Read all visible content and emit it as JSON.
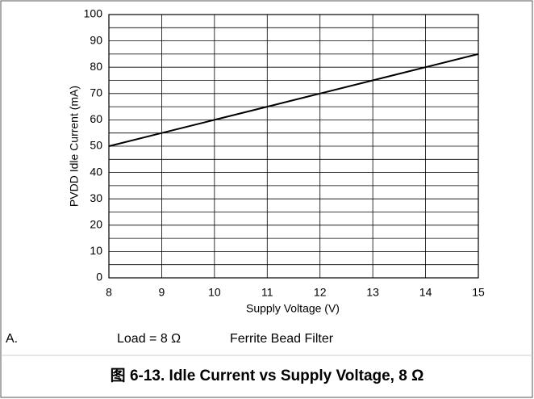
{
  "chart_data": {
    "type": "line",
    "x": [
      8,
      9,
      10,
      11,
      12,
      13,
      14,
      15
    ],
    "series": [
      {
        "name": null,
        "color": "#000000",
        "values": [
          50,
          55,
          60,
          65,
          70,
          75,
          80,
          85
        ]
      }
    ],
    "xlabel": "Supply Voltage (V)",
    "ylabel": "PVDD Idle Current (mA)",
    "xlim": [
      8,
      15
    ],
    "xticks": [
      8,
      9,
      10,
      11,
      12,
      13,
      14,
      15
    ],
    "ylim": [
      0,
      100
    ],
    "yticks": [
      0,
      10,
      20,
      30,
      40,
      50,
      60,
      70,
      80,
      90,
      100
    ],
    "y_minor_grid": [
      5,
      15,
      25,
      35,
      45,
      55,
      65,
      75,
      85,
      95
    ],
    "grid": true,
    "footnote": [
      "A.",
      "Load = 8 Ω",
      "Ferrite Bead Filter"
    ],
    "caption": "图 6-13. Idle Current vs Supply Voltage, 8 Ω"
  }
}
